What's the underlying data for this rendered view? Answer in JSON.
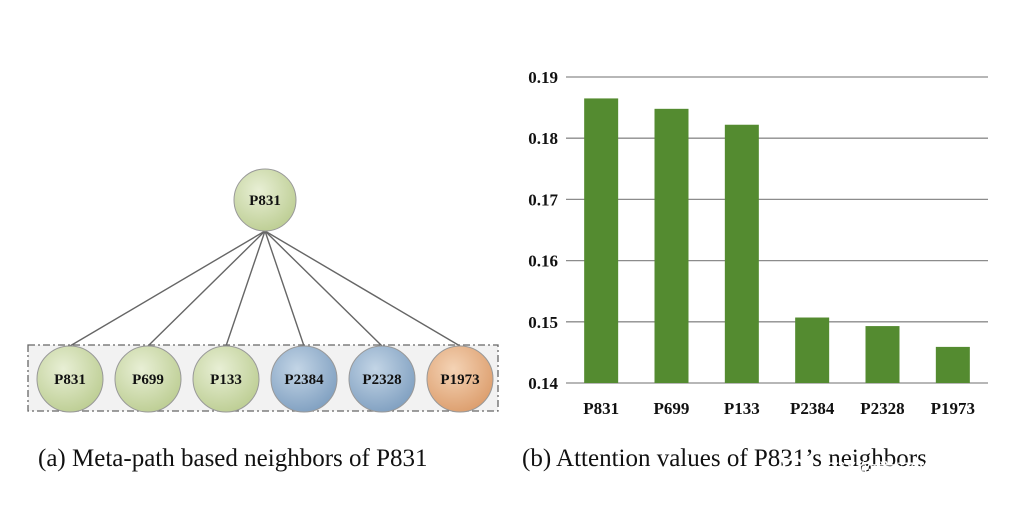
{
  "panel_a": {
    "caption": "(a)  Meta-path based neighbors of P831",
    "root": {
      "label": "P831",
      "color": "#cfdcae"
    },
    "neighbors": [
      {
        "label": "P831",
        "color": "#cfdcae"
      },
      {
        "label": "P699",
        "color": "#cfdcae"
      },
      {
        "label": "P133",
        "color": "#cfdcae"
      },
      {
        "label": "P2384",
        "color": "#9db7d2"
      },
      {
        "label": "P2328",
        "color": "#9db7d2"
      },
      {
        "label": "P1973",
        "color": "#e6b58f"
      }
    ]
  },
  "panel_b": {
    "caption": "(b)  Attention values of P831’s neighbors"
  },
  "watermark": {
    "text": "阿泽的学习笔记"
  },
  "chart_data": {
    "type": "bar",
    "title": "Attention values of P831’s neighbors",
    "categories": [
      "P831",
      "P699",
      "P133",
      "P2384",
      "P2328",
      "P1973"
    ],
    "values": [
      0.1865,
      0.1848,
      0.1822,
      0.1507,
      0.1493,
      0.1459
    ],
    "ylim": [
      0.14,
      0.19
    ],
    "yticks": [
      "0.14",
      "0.15",
      "0.16",
      "0.17",
      "0.18",
      "0.19"
    ],
    "grid": true,
    "bar_color": "#548b30",
    "xlabel": "",
    "ylabel": ""
  }
}
